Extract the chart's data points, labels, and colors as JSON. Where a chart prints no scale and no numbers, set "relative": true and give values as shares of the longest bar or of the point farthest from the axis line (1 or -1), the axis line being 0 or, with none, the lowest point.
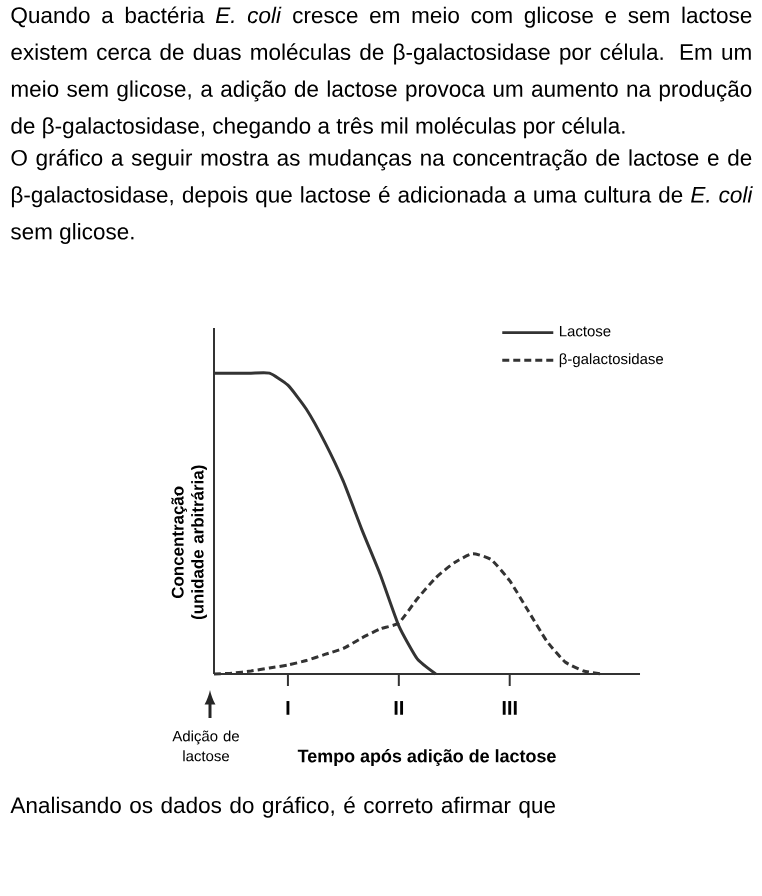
{
  "chart_data": {
    "type": "line",
    "relative": true,
    "title": "Quando a bactéria *E. coli* cresce em meio com glicose e sem lactose existem cerca de duas moléculas de β-galactosidase por célula. Em um meio sem glicose, a adição de lactose provoca um aumento na produção de β-galactosidase, chegando a três mil moléculas por célula.",
    "subtitle": "O gráfico a seguir mostra as mudanças na concentração de lactose e de β-galactosidase, depois que lactose é adicionada a uma cultura de *E. coli* sem glicose.",
    "xlabel": "Tempo após adição de lactose",
    "ylabel": "Concentração (unidade arbitrária)",
    "categories": [
      null,
      null,
      null,
      null,
      "I",
      null,
      null,
      null,
      null,
      null,
      "II",
      null,
      null,
      null,
      null,
      null,
      "III",
      null,
      null,
      null,
      null,
      null,
      null,
      null
    ],
    "legend": "top right",
    "marker": "none",
    "series": [
      {
        "name": "Lactose",
        "color": "#333333",
        "line_style": "solid",
        "values": [
          1,
          1,
          1,
          1,
          0.96,
          0.88,
          0.77,
          0.64,
          0.48,
          0.33,
          0.16,
          0.05,
          0,
          null,
          null,
          null,
          null,
          null,
          null,
          null,
          null,
          null,
          null,
          null
        ]
      },
      {
        "name": "β-galactosidase",
        "color": "#333333",
        "line_style": "dashed",
        "values": [
          0,
          0.003,
          0.01,
          0.02,
          0.03,
          0.045,
          0.065,
          0.085,
          0.12,
          0.15,
          0.17,
          0.25,
          0.32,
          0.37,
          0.4,
          0.38,
          0.31,
          0.21,
          0.11,
          0.04,
          0.01,
          0,
          null,
          null
        ]
      }
    ],
    "annotations": [
      "Adição de lactose",
      "Analisando os dados do gráfico, é correto afirmar que"
    ]
  }
}
